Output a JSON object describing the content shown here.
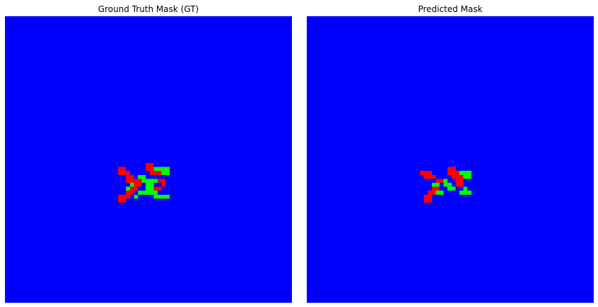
{
  "panels": [
    {
      "title": "Ground Truth Mask (GT)",
      "background": "#0000ff",
      "cells": [
        [
          "#ff0000",
          [
            [
              29,
              6
            ],
            [
              30,
              6
            ],
            [
              30,
              7
            ],
            [
              31,
              7
            ],
            [
              31,
              8
            ],
            [
              32,
              8
            ],
            [
              29,
              7
            ],
            [
              31,
              9
            ],
            [
              32,
              9
            ],
            [
              33,
              9
            ],
            [
              36,
              5
            ],
            [
              37,
              5
            ],
            [
              36,
              6
            ],
            [
              37,
              6
            ],
            [
              37,
              7
            ],
            [
              38,
              7
            ],
            [
              39,
              7
            ],
            [
              39,
              9
            ],
            [
              40,
              9
            ],
            [
              40,
              10
            ],
            [
              34,
              9
            ],
            [
              34,
              10
            ],
            [
              33,
              10
            ],
            [
              32,
              11
            ],
            [
              33,
              11
            ],
            [
              31,
              12
            ],
            [
              32,
              12
            ],
            [
              31,
              13
            ],
            [
              29,
              13
            ],
            [
              30,
              13
            ],
            [
              29,
              14
            ],
            [
              30,
              14
            ],
            [
              38,
              11
            ],
            [
              39,
              11
            ]
          ]
        ],
        [
          "#00ff00",
          [
            [
              38,
              6
            ],
            [
              39,
              6
            ],
            [
              40,
              6
            ],
            [
              41,
              6
            ],
            [
              41,
              7
            ],
            [
              40,
              7
            ],
            [
              34,
              8
            ],
            [
              35,
              8
            ],
            [
              35,
              9
            ],
            [
              36,
              9
            ],
            [
              37,
              9
            ],
            [
              38,
              9
            ],
            [
              32,
              10
            ],
            [
              36,
              10
            ],
            [
              37,
              10
            ],
            [
              31,
              11
            ],
            [
              36,
              11
            ],
            [
              37,
              11
            ],
            [
              34,
              12
            ],
            [
              35,
              12
            ],
            [
              36,
              12
            ],
            [
              37,
              12
            ],
            [
              38,
              12
            ],
            [
              38,
              13
            ],
            [
              39,
              13
            ],
            [
              40,
              13
            ],
            [
              41,
              13
            ],
            [
              33,
              13
            ]
          ]
        ]
      ]
    },
    {
      "title": "Predicted Mask",
      "background": "#0000ff",
      "cells": [
        [
          "#ff0000",
          [
            [
              29,
              7
            ],
            [
              30,
              7
            ],
            [
              31,
              7
            ],
            [
              30,
              8
            ],
            [
              31,
              8
            ],
            [
              32,
              8
            ],
            [
              36,
              6
            ],
            [
              37,
              6
            ],
            [
              36,
              7
            ],
            [
              37,
              7
            ],
            [
              38,
              7
            ],
            [
              33,
              9
            ],
            [
              34,
              9
            ],
            [
              37,
              8
            ],
            [
              38,
              8
            ],
            [
              39,
              8
            ],
            [
              38,
              9
            ],
            [
              39,
              9
            ],
            [
              32,
              11
            ],
            [
              33,
              11
            ],
            [
              31,
              12
            ],
            [
              32,
              12
            ],
            [
              30,
              13
            ],
            [
              31,
              13
            ],
            [
              30,
              14
            ],
            [
              31,
              14
            ],
            [
              38,
              10
            ],
            [
              39,
              10
            ]
          ]
        ],
        [
          "#00ff00",
          [
            [
              39,
              7
            ],
            [
              40,
              7
            ],
            [
              41,
              7
            ],
            [
              41,
              8
            ],
            [
              40,
              8
            ],
            [
              32,
              10
            ],
            [
              33,
              10
            ],
            [
              35,
              10
            ],
            [
              36,
              10
            ],
            [
              35,
              9
            ],
            [
              36,
              11
            ],
            [
              37,
              11
            ],
            [
              33,
              12
            ],
            [
              34,
              12
            ],
            [
              39,
              12
            ],
            [
              40,
              12
            ],
            [
              41,
              12
            ],
            [
              40,
              11
            ]
          ]
        ]
      ]
    }
  ]
}
